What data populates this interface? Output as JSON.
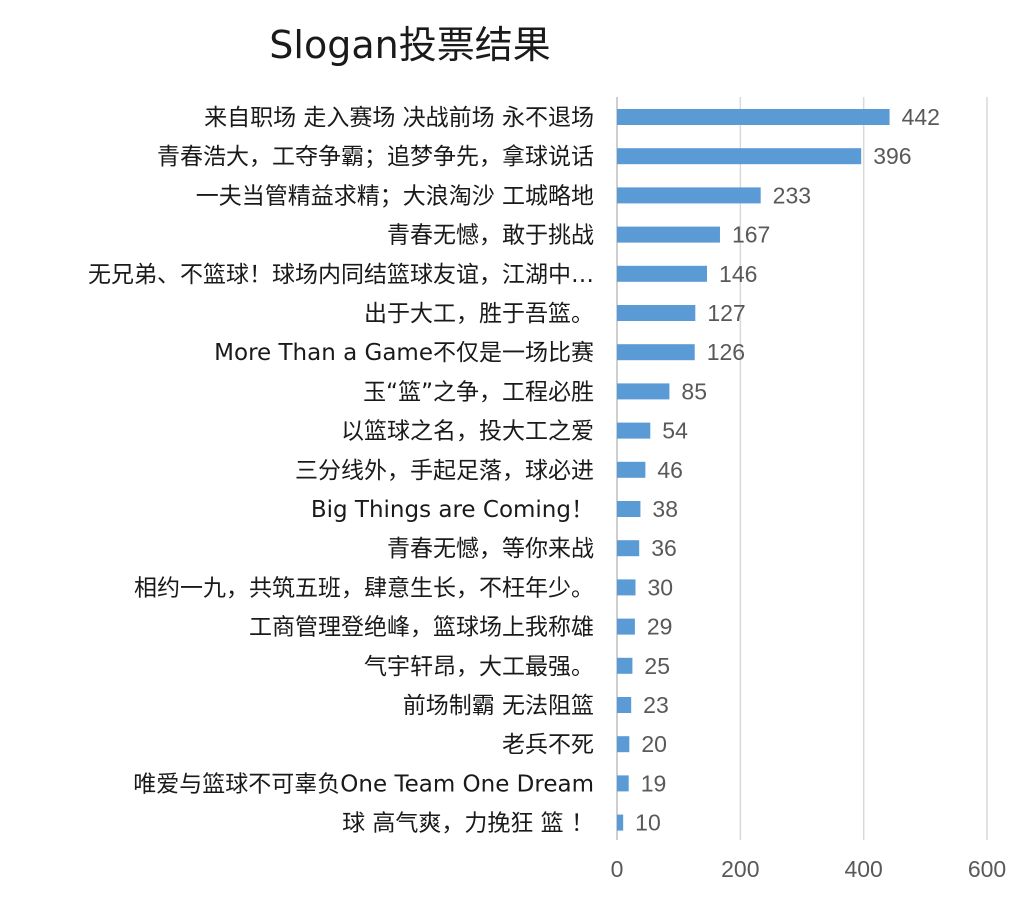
{
  "chart_data": {
    "type": "bar",
    "orientation": "horizontal",
    "title": "Slogan投票结果",
    "categories": [
      "来自职场 走入赛场 决战前场 永不退场",
      "青春浩大，工夺争霸；追梦争先，拿球说话",
      "一夫当管精益求精；大浪淘沙 工城略地",
      "青春无憾，敢于挑战",
      "无兄弟、不篮球！球场内同结篮球友谊，江湖中…",
      "出于大工，胜于吾篮。",
      "More Than a Game不仅是一场比赛",
      "玉“篮”之争，工程必胜",
      "以篮球之名，投大工之爱",
      "三分线外，手起足落，球必进",
      "Big Things are Coming！",
      "青春无憾，等你来战",
      "相约一九，共筑五班，肆意生长，不枉年少。",
      "工商管理登绝峰，篮球场上我称雄",
      "气宇轩昂，大工最强。",
      "前场制霸 无法阻篮",
      "老兵不死",
      "唯爱与篮球不可辜负One Team One Dream",
      "球 高气爽，力挽狂 篮 ！"
    ],
    "values": [
      442,
      396,
      233,
      167,
      146,
      127,
      126,
      85,
      54,
      46,
      38,
      36,
      30,
      29,
      25,
      23,
      20,
      19,
      10
    ],
    "xlim": [
      0,
      600
    ],
    "ticks": [
      "0",
      "200",
      "400",
      "600"
    ],
    "xlabel": "",
    "ylabel": "",
    "grid": true,
    "legend": "none",
    "bar_color": "#5b9bd5"
  }
}
